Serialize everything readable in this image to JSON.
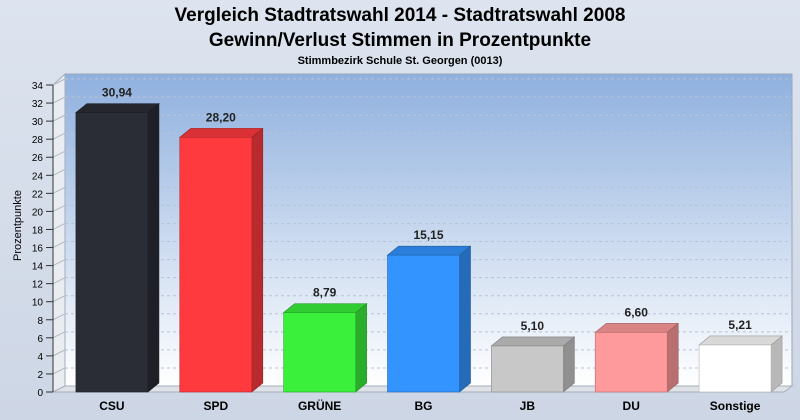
{
  "chart_data": {
    "type": "bar",
    "title": "Vergleich Stadtratswahl 2014 - Stadtratswahl 2008",
    "subtitle": "Gewinn/Verlust Stimmen in Prozentpunkte",
    "caption": "Stimmbezirk Schule St. Georgen (0013)",
    "ylabel": "Prozentpunkte",
    "xlabel": "",
    "categories": [
      "CSU",
      "SPD",
      "GRÜNE",
      "BG",
      "JB",
      "DU",
      "Sonstige"
    ],
    "values": [
      30.94,
      28.2,
      8.79,
      15.15,
      5.1,
      6.6,
      5.21
    ],
    "value_labels": [
      "30,94",
      "28,20",
      "8,79",
      "15,15",
      "5,10",
      "6,60",
      "5,21"
    ],
    "colors": [
      "#2b2d36",
      "#ff3a3e",
      "#3af03a",
      "#3394ff",
      "#c8c8c8",
      "#ff9a9c",
      "#ffffff"
    ],
    "ylim": [
      0,
      34
    ],
    "yticks": [
      0,
      2,
      4,
      6,
      8,
      10,
      12,
      14,
      16,
      18,
      20,
      22,
      24,
      26,
      28,
      30,
      32,
      34
    ],
    "grid": true,
    "legend": "none"
  }
}
